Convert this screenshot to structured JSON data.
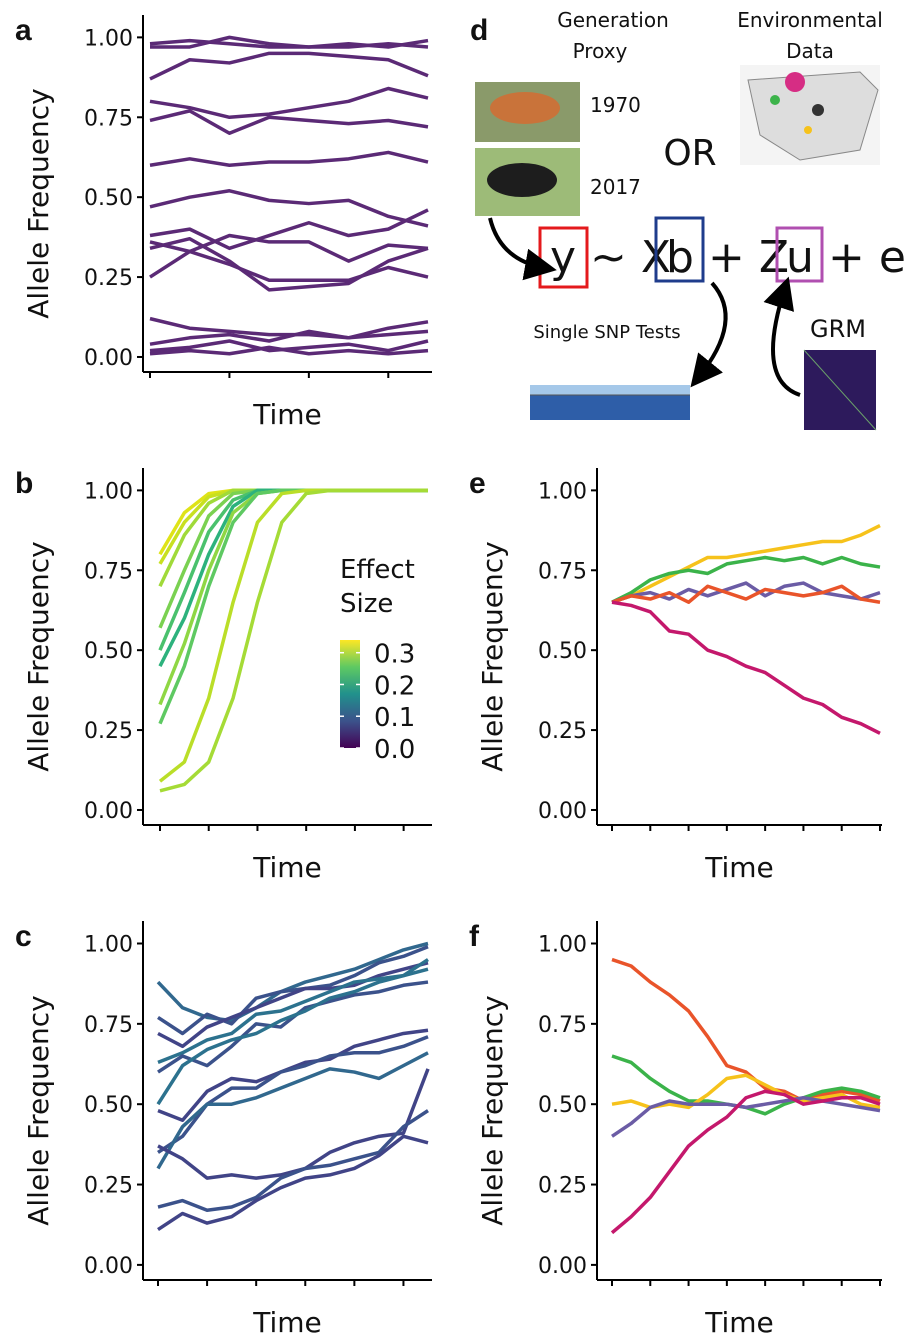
{
  "chart_data": [
    {
      "type": "line",
      "panel_label": "a",
      "ylabel": "Allele Frequency",
      "xlabel": "Time",
      "categories": [
        null,
        null,
        null,
        null,
        null,
        null,
        null,
        null
      ],
      "ylim": [
        -0.047,
        1.07
      ],
      "yticks": [
        {
          "value": 0,
          "label": "0.00"
        },
        {
          "value": 0.25,
          "label": "0.25"
        },
        {
          "value": 0.5,
          "label": "0.50"
        },
        {
          "value": 0.75,
          "label": "0.75"
        },
        {
          "value": 1,
          "label": "1.00"
        }
      ],
      "series": [
        {
          "color": "#5b2a76",
          "values": [
            0.98,
            0.99,
            0.98,
            0.97,
            0.97,
            0.98,
            0.97,
            0.99
          ]
        },
        {
          "color": "#5b2a76",
          "values": [
            0.97,
            0.97,
            1.0,
            0.98,
            0.97,
            0.97,
            0.98,
            0.97
          ]
        },
        {
          "color": "#5b2a76",
          "values": [
            0.87,
            0.93,
            0.92,
            0.95,
            0.95,
            0.94,
            0.93,
            0.88
          ]
        },
        {
          "color": "#5b2a76",
          "values": [
            0.8,
            0.78,
            0.75,
            0.76,
            0.78,
            0.8,
            0.84,
            0.81
          ]
        },
        {
          "color": "#5b2a76",
          "values": [
            0.74,
            0.77,
            0.7,
            0.75,
            0.74,
            0.73,
            0.74,
            0.72
          ]
        },
        {
          "color": "#5b2a76",
          "values": [
            0.6,
            0.62,
            0.6,
            0.61,
            0.61,
            0.62,
            0.64,
            0.61
          ]
        },
        {
          "color": "#5b2a76",
          "values": [
            0.47,
            0.5,
            0.52,
            0.49,
            0.48,
            0.49,
            0.44,
            0.41
          ]
        },
        {
          "color": "#5b2a76",
          "values": [
            0.38,
            0.4,
            0.34,
            0.38,
            0.42,
            0.38,
            0.4,
            0.46
          ]
        },
        {
          "color": "#5b2a76",
          "values": [
            0.36,
            0.33,
            0.38,
            0.36,
            0.36,
            0.3,
            0.35,
            0.34
          ]
        },
        {
          "color": "#5b2a76",
          "values": [
            0.25,
            0.33,
            0.29,
            0.24,
            0.24,
            0.24,
            0.28,
            0.25
          ]
        },
        {
          "color": "#5b2a76",
          "values": [
            0.34,
            0.37,
            0.3,
            0.21,
            0.22,
            0.23,
            0.3,
            0.34
          ]
        },
        {
          "color": "#5b2a76",
          "values": [
            0.12,
            0.09,
            0.08,
            0.07,
            0.07,
            0.06,
            0.09,
            0.11
          ]
        },
        {
          "color": "#5b2a76",
          "values": [
            0.04,
            0.06,
            0.07,
            0.05,
            0.08,
            0.06,
            0.07,
            0.08
          ]
        },
        {
          "color": "#5b2a76",
          "values": [
            0.02,
            0.03,
            0.05,
            0.02,
            0.03,
            0.04,
            0.02,
            0.05
          ]
        },
        {
          "color": "#5b2a76",
          "values": [
            0.01,
            0.02,
            0.01,
            0.03,
            0.01,
            0.02,
            0.01,
            0.02
          ]
        }
      ]
    },
    {
      "type": "line",
      "panel_label": "b",
      "ylabel": "Allele Frequency",
      "xlabel": "Time",
      "categories": [
        null,
        null,
        null,
        null,
        null,
        null,
        null,
        null,
        null,
        null,
        null,
        null
      ],
      "ylim": [
        -0.047,
        1.07
      ],
      "yticks": [
        {
          "value": 0,
          "label": "0.00"
        },
        {
          "value": 0.25,
          "label": "0.25"
        },
        {
          "value": 0.5,
          "label": "0.50"
        },
        {
          "value": 0.75,
          "label": "0.75"
        },
        {
          "value": 1,
          "label": "1.00"
        }
      ],
      "colorbar": {
        "title": [
          "Effect",
          "Size"
        ],
        "clim": [
          0,
          0.34
        ],
        "ticks": [
          {
            "value": 0,
            "label": "0.0"
          },
          {
            "value": 0.1,
            "label": "0.1"
          },
          {
            "value": 0.2,
            "label": "0.2"
          },
          {
            "value": 0.3,
            "label": "0.3"
          }
        ]
      },
      "series": [
        {
          "color": "#dfe318",
          "values": [
            0.8,
            0.93,
            0.99,
            1,
            1,
            1,
            1,
            1,
            1,
            1,
            1,
            1
          ]
        },
        {
          "color": "#c8e020",
          "values": [
            0.77,
            0.9,
            0.98,
            1,
            1,
            1,
            1,
            1,
            1,
            1,
            1,
            1
          ]
        },
        {
          "color": "#a0da39",
          "values": [
            0.7,
            0.86,
            0.96,
            1,
            1,
            1,
            1,
            1,
            1,
            1,
            1,
            1
          ]
        },
        {
          "color": "#7ad151",
          "values": [
            0.57,
            0.75,
            0.92,
            0.99,
            1,
            1,
            1,
            1,
            1,
            1,
            1,
            1
          ]
        },
        {
          "color": "#4ac16d",
          "values": [
            0.5,
            0.68,
            0.87,
            0.97,
            1,
            1,
            1,
            1,
            1,
            1,
            1,
            1
          ]
        },
        {
          "color": "#2db27d",
          "values": [
            0.45,
            0.6,
            0.8,
            0.95,
            1,
            1,
            1,
            1,
            1,
            1,
            1,
            1
          ]
        },
        {
          "color": "#8fd744",
          "values": [
            0.33,
            0.52,
            0.75,
            0.93,
            0.99,
            1,
            1,
            1,
            1,
            1,
            1,
            1
          ]
        },
        {
          "color": "#5ec962",
          "values": [
            0.27,
            0.45,
            0.7,
            0.9,
            0.99,
            1,
            1,
            1,
            1,
            1,
            1,
            1
          ]
        },
        {
          "color": "#bade28",
          "values": [
            0.09,
            0.15,
            0.35,
            0.65,
            0.9,
            0.99,
            1,
            1,
            1,
            1,
            1,
            1
          ]
        },
        {
          "color": "#a5db36",
          "values": [
            0.06,
            0.08,
            0.15,
            0.35,
            0.65,
            0.9,
            0.99,
            1,
            1,
            1,
            1,
            1
          ]
        }
      ]
    },
    {
      "type": "line",
      "panel_label": "c",
      "ylabel": "Allele Frequency",
      "xlabel": "Time",
      "categories": [
        null,
        null,
        null,
        null,
        null,
        null,
        null,
        null,
        null,
        null,
        null,
        null
      ],
      "ylim": [
        -0.047,
        1.07
      ],
      "yticks": [
        {
          "value": 0,
          "label": "0.00"
        },
        {
          "value": 0.25,
          "label": "0.25"
        },
        {
          "value": 0.5,
          "label": "0.50"
        },
        {
          "value": 0.75,
          "label": "0.75"
        },
        {
          "value": 1,
          "label": "1.00"
        }
      ],
      "series": [
        {
          "color": "#31688e",
          "values": [
            0.88,
            0.8,
            0.77,
            0.76,
            0.8,
            0.85,
            0.88,
            0.9,
            0.92,
            0.95,
            0.98,
            1.0
          ]
        },
        {
          "color": "#3b528b",
          "values": [
            0.77,
            0.72,
            0.78,
            0.75,
            0.83,
            0.85,
            0.86,
            0.87,
            0.9,
            0.94,
            0.96,
            0.99
          ]
        },
        {
          "color": "#414487",
          "values": [
            0.72,
            0.68,
            0.74,
            0.77,
            0.8,
            0.83,
            0.86,
            0.86,
            0.87,
            0.9,
            0.92,
            0.94
          ]
        },
        {
          "color": "#2c728e",
          "values": [
            0.63,
            0.66,
            0.7,
            0.72,
            0.78,
            0.79,
            0.82,
            0.85,
            0.88,
            0.89,
            0.9,
            0.92
          ]
        },
        {
          "color": "#3b528b",
          "values": [
            0.6,
            0.65,
            0.62,
            0.68,
            0.75,
            0.74,
            0.8,
            0.82,
            0.84,
            0.85,
            0.87,
            0.88
          ]
        },
        {
          "color": "#2c728e",
          "values": [
            0.5,
            0.62,
            0.67,
            0.7,
            0.72,
            0.76,
            0.79,
            0.83,
            0.85,
            0.88,
            0.9,
            0.95
          ]
        },
        {
          "color": "#414487",
          "values": [
            0.48,
            0.45,
            0.54,
            0.58,
            0.57,
            0.6,
            0.63,
            0.64,
            0.68,
            0.7,
            0.72,
            0.73
          ]
        },
        {
          "color": "#3b528b",
          "values": [
            0.35,
            0.4,
            0.5,
            0.55,
            0.55,
            0.6,
            0.62,
            0.65,
            0.66,
            0.66,
            0.68,
            0.71
          ]
        },
        {
          "color": "#31688e",
          "values": [
            0.3,
            0.43,
            0.5,
            0.5,
            0.52,
            0.55,
            0.58,
            0.61,
            0.6,
            0.58,
            0.62,
            0.66
          ]
        },
        {
          "color": "#414487",
          "values": [
            0.37,
            0.33,
            0.27,
            0.28,
            0.27,
            0.28,
            0.3,
            0.35,
            0.38,
            0.4,
            0.41,
            0.61
          ]
        },
        {
          "color": "#3b528b",
          "values": [
            0.18,
            0.2,
            0.17,
            0.18,
            0.21,
            0.27,
            0.3,
            0.31,
            0.33,
            0.35,
            0.43,
            0.48
          ]
        },
        {
          "color": "#414487",
          "values": [
            0.11,
            0.16,
            0.13,
            0.15,
            0.2,
            0.24,
            0.27,
            0.28,
            0.3,
            0.34,
            0.4,
            0.38
          ]
        }
      ]
    },
    {
      "type": "line",
      "panel_label": "e",
      "ylabel": "Allele Frequency",
      "xlabel": "Time",
      "categories": [
        null,
        null,
        null,
        null,
        null,
        null,
        null,
        null,
        null,
        null,
        null,
        null,
        null,
        null,
        null
      ],
      "ylim": [
        -0.047,
        1.07
      ],
      "yticks": [
        {
          "value": 0,
          "label": "0.00"
        },
        {
          "value": 0.25,
          "label": "0.25"
        },
        {
          "value": 0.5,
          "label": "0.50"
        },
        {
          "value": 0.75,
          "label": "0.75"
        },
        {
          "value": 1,
          "label": "1.00"
        }
      ],
      "series": [
        {
          "color": "#f6c21b",
          "values": [
            0.65,
            0.67,
            0.7,
            0.73,
            0.76,
            0.79,
            0.79,
            0.8,
            0.81,
            0.82,
            0.83,
            0.84,
            0.84,
            0.86,
            0.89
          ]
        },
        {
          "color": "#3bb34a",
          "values": [
            0.65,
            0.68,
            0.72,
            0.74,
            0.75,
            0.74,
            0.77,
            0.78,
            0.79,
            0.78,
            0.79,
            0.77,
            0.79,
            0.77,
            0.76
          ]
        },
        {
          "color": "#6b5ca5",
          "values": [
            0.65,
            0.67,
            0.68,
            0.66,
            0.69,
            0.67,
            0.69,
            0.71,
            0.67,
            0.7,
            0.71,
            0.68,
            0.67,
            0.66,
            0.68
          ]
        },
        {
          "color": "#e9542a",
          "values": [
            0.65,
            0.67,
            0.66,
            0.68,
            0.65,
            0.7,
            0.68,
            0.66,
            0.69,
            0.68,
            0.67,
            0.68,
            0.7,
            0.66,
            0.65
          ]
        },
        {
          "color": "#c4186c",
          "values": [
            0.65,
            0.64,
            0.62,
            0.56,
            0.55,
            0.5,
            0.48,
            0.45,
            0.43,
            0.39,
            0.35,
            0.33,
            0.29,
            0.27,
            0.24
          ]
        }
      ]
    },
    {
      "type": "line",
      "panel_label": "f",
      "ylabel": "Allele Frequency",
      "xlabel": "Time",
      "categories": [
        null,
        null,
        null,
        null,
        null,
        null,
        null,
        null,
        null,
        null,
        null,
        null,
        null,
        null,
        null
      ],
      "ylim": [
        -0.047,
        1.07
      ],
      "yticks": [
        {
          "value": 0,
          "label": "0.00"
        },
        {
          "value": 0.25,
          "label": "0.25"
        },
        {
          "value": 0.5,
          "label": "0.50"
        },
        {
          "value": 0.75,
          "label": "0.75"
        },
        {
          "value": 1,
          "label": "1.00"
        }
      ],
      "series": [
        {
          "color": "#e9542a",
          "values": [
            0.95,
            0.93,
            0.88,
            0.84,
            0.79,
            0.71,
            0.62,
            0.6,
            0.55,
            0.54,
            0.51,
            0.53,
            0.54,
            0.53,
            0.51
          ]
        },
        {
          "color": "#3bb34a",
          "values": [
            0.65,
            0.63,
            0.58,
            0.54,
            0.51,
            0.51,
            0.5,
            0.49,
            0.47,
            0.5,
            0.52,
            0.54,
            0.55,
            0.54,
            0.52
          ]
        },
        {
          "color": "#f6c21b",
          "values": [
            0.5,
            0.51,
            0.49,
            0.5,
            0.49,
            0.53,
            0.58,
            0.59,
            0.56,
            0.53,
            0.51,
            0.52,
            0.53,
            0.5,
            0.49
          ]
        },
        {
          "color": "#6b5ca5",
          "values": [
            0.4,
            0.44,
            0.49,
            0.51,
            0.5,
            0.5,
            0.5,
            0.49,
            0.5,
            0.51,
            0.52,
            0.51,
            0.5,
            0.49,
            0.48
          ]
        },
        {
          "color": "#c4186c",
          "values": [
            0.1,
            0.15,
            0.21,
            0.29,
            0.37,
            0.42,
            0.46,
            0.52,
            0.54,
            0.53,
            0.5,
            0.51,
            0.52,
            0.52,
            0.5
          ]
        }
      ]
    }
  ],
  "diagram": {
    "panel_label": "d",
    "generation_proxy": [
      "Generation",
      "Proxy"
    ],
    "environmental_data": [
      "Environmental",
      "Data"
    ],
    "years": [
      "1970",
      "2017"
    ],
    "or": "OR",
    "equation": {
      "y": "y",
      "tilde_x": "~ X",
      "b": "b",
      "plus_z": "+ Z",
      "u": "u",
      "plus_e": "+ e"
    },
    "single_snp": "Single SNP Tests",
    "grm": "GRM"
  }
}
